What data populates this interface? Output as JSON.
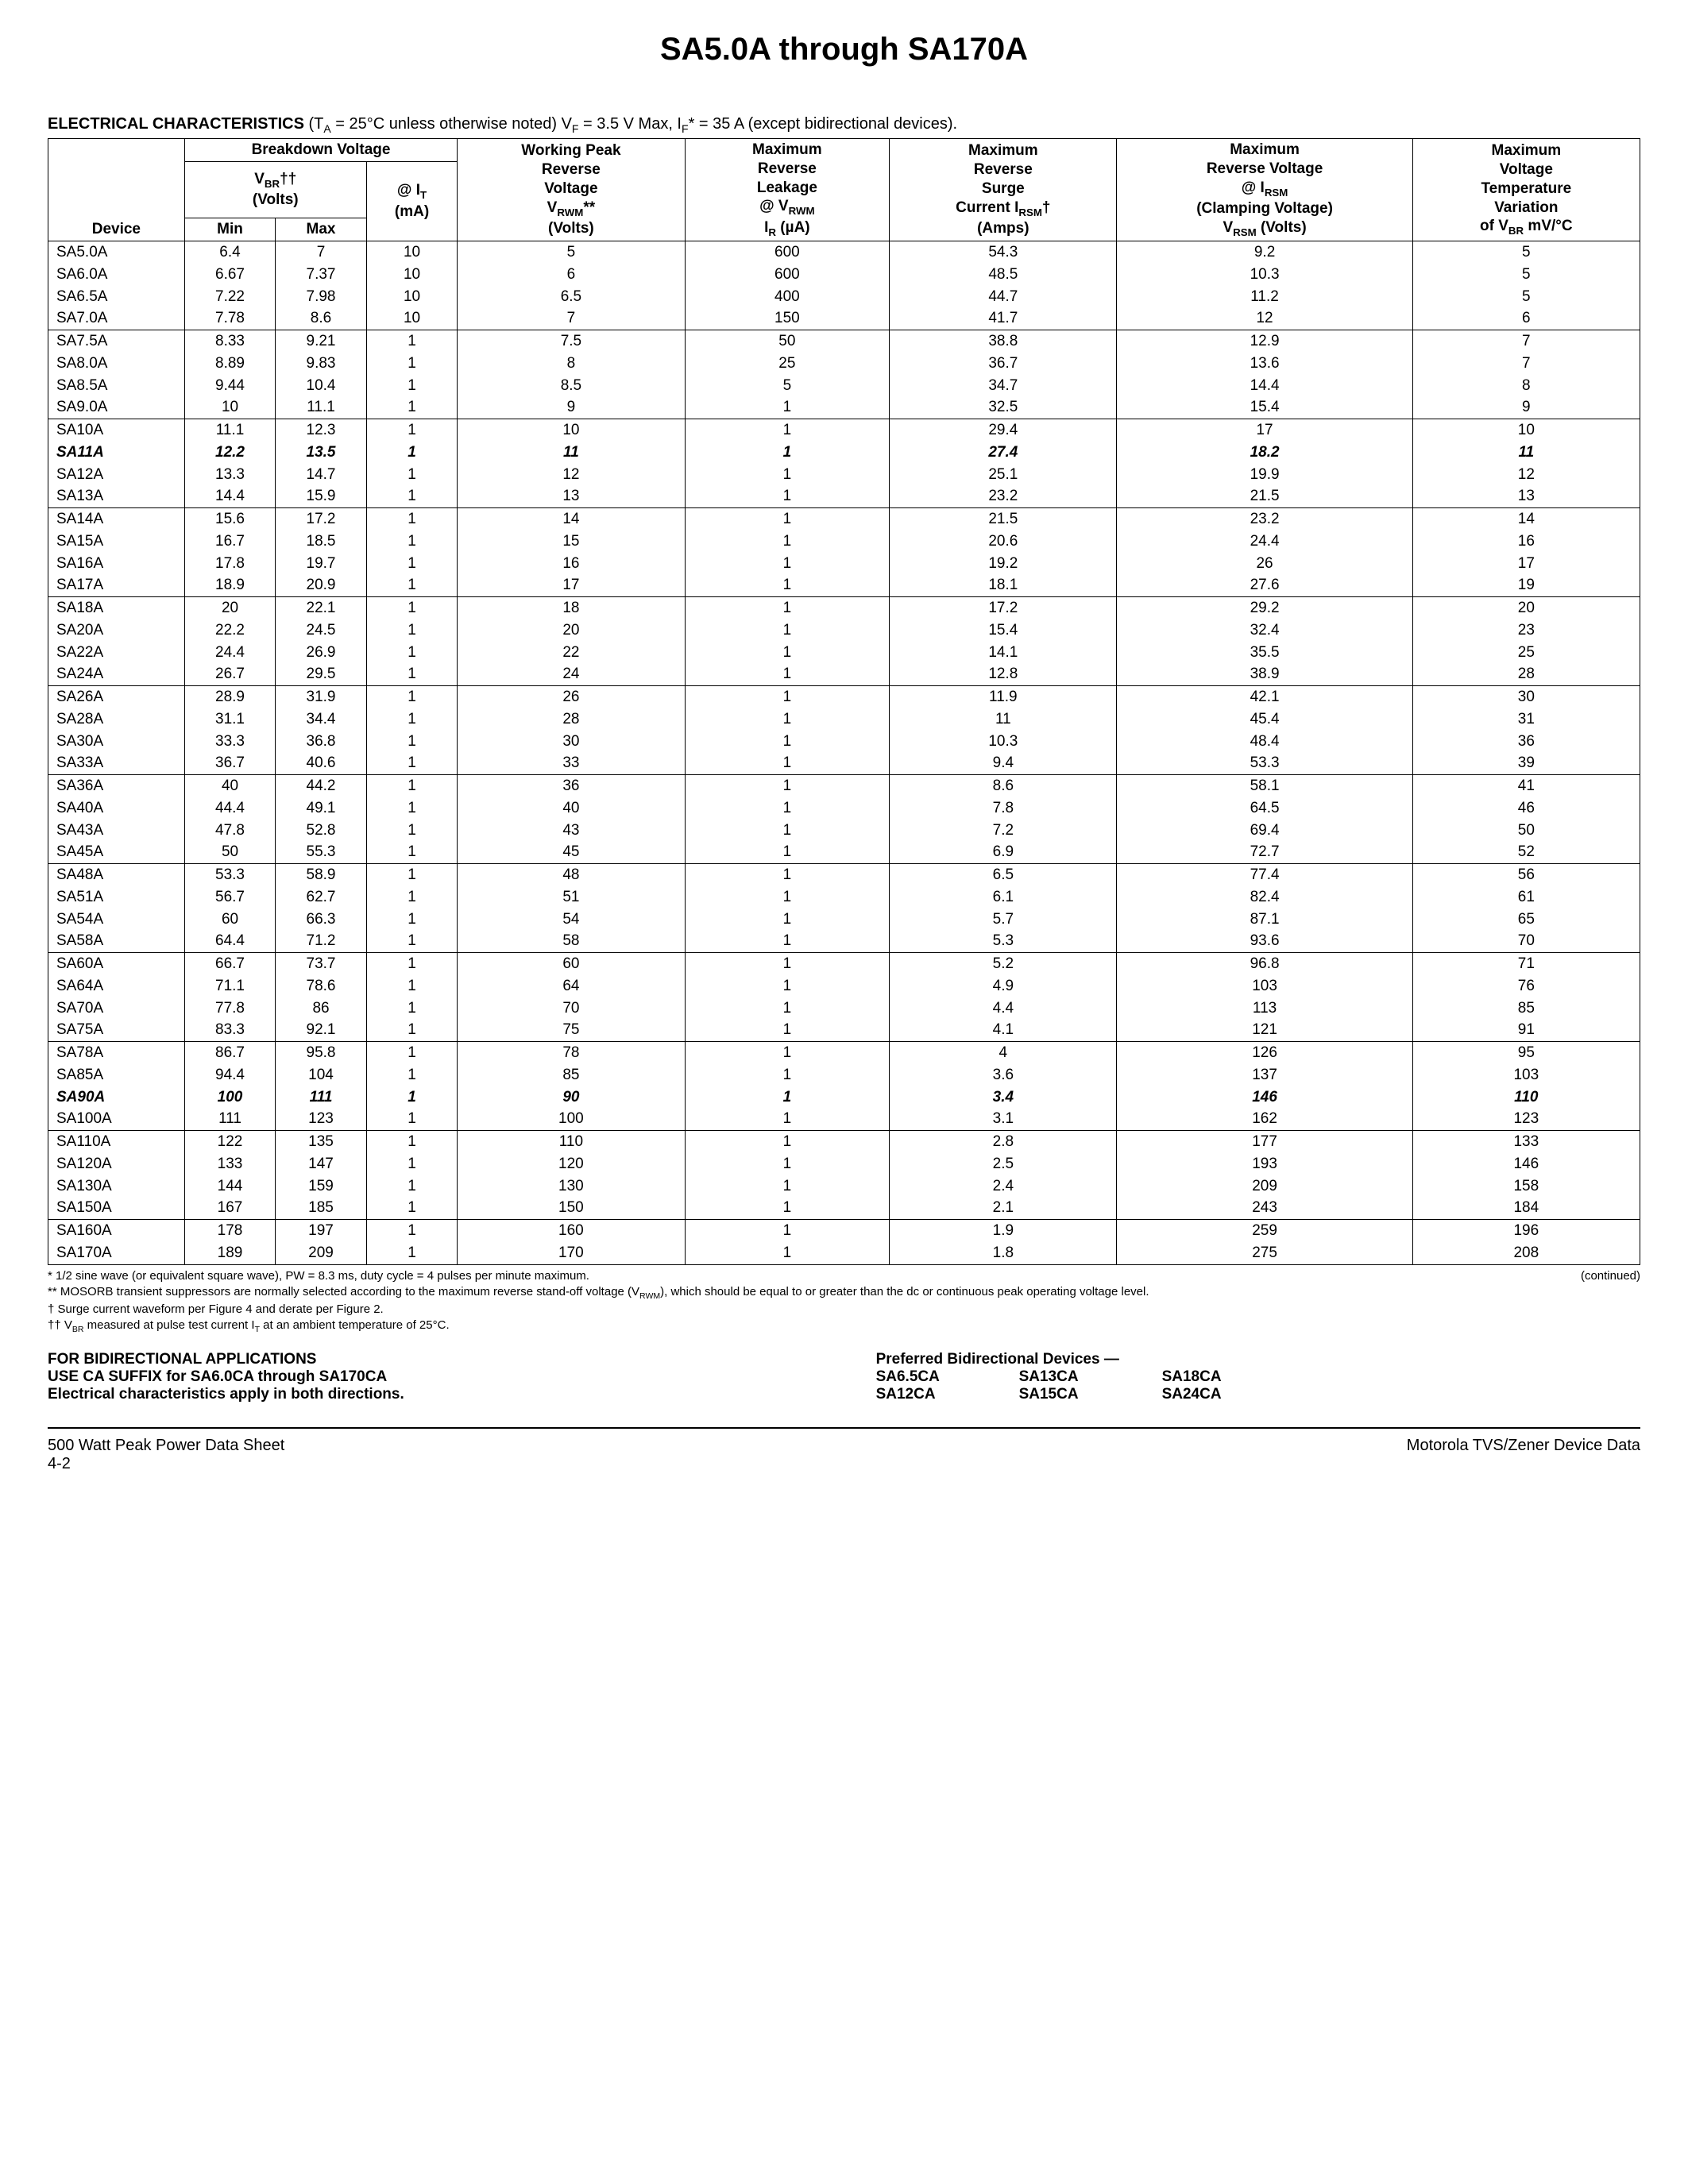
{
  "title": "SA5.0A through SA170A",
  "section_header": {
    "bold": "ELECTRICAL CHARACTERISTICS",
    "rest": " (T_A = 25°C unless otherwise noted) V_F = 3.5 V Max, I_F* = 35 A (except bidirectional devices)."
  },
  "columns": {
    "device": "Device",
    "breakdown": "Breakdown Voltage",
    "vbr": "V_BR††",
    "vbr_unit": "(Volts)",
    "min": "Min",
    "max": "Max",
    "it": "@ I_T",
    "it_unit": "(mA)",
    "vrwm_h1": "Working Peak",
    "vrwm_h2": "Reverse Voltage",
    "vrwm_h3": "V_RWM**",
    "vrwm_unit": "(Volts)",
    "ir_h1": "Maximum",
    "ir_h2": "Reverse Leakage",
    "ir_h3": "@ V_RWM",
    "ir_unit": "I_R (µA)",
    "irsm_h1": "Maximum",
    "irsm_h2": "Reverse Surge",
    "irsm_h3": "Current I_RSM†",
    "irsm_unit": "(Amps)",
    "vrsm_h1": "Maximum",
    "vrsm_h2": "Reverse Voltage",
    "vrsm_h3": "@ I_RSM",
    "vrsm_h4": "(Clamping Voltage)",
    "vrsm_unit": "V_RSM (Volts)",
    "temp_h1": "Maximum",
    "temp_h2": "Voltage",
    "temp_h3": "Temperature",
    "temp_h4": "Variation",
    "temp_unit": "of V_BR mV/°C"
  },
  "groups": [
    [
      {
        "device": "SA5.0A",
        "min": "6.4",
        "max": "7",
        "it": "10",
        "vrwm": "5",
        "ir": "600",
        "irsm": "54.3",
        "vrsm": "9.2",
        "temp": "5"
      },
      {
        "device": "SA6.0A",
        "min": "6.67",
        "max": "7.37",
        "it": "10",
        "vrwm": "6",
        "ir": "600",
        "irsm": "48.5",
        "vrsm": "10.3",
        "temp": "5"
      },
      {
        "device": "SA6.5A",
        "min": "7.22",
        "max": "7.98",
        "it": "10",
        "vrwm": "6.5",
        "ir": "400",
        "irsm": "44.7",
        "vrsm": "11.2",
        "temp": "5"
      },
      {
        "device": "SA7.0A",
        "min": "7.78",
        "max": "8.6",
        "it": "10",
        "vrwm": "7",
        "ir": "150",
        "irsm": "41.7",
        "vrsm": "12",
        "temp": "6"
      }
    ],
    [
      {
        "device": "SA7.5A",
        "min": "8.33",
        "max": "9.21",
        "it": "1",
        "vrwm": "7.5",
        "ir": "50",
        "irsm": "38.8",
        "vrsm": "12.9",
        "temp": "7"
      },
      {
        "device": "SA8.0A",
        "min": "8.89",
        "max": "9.83",
        "it": "1",
        "vrwm": "8",
        "ir": "25",
        "irsm": "36.7",
        "vrsm": "13.6",
        "temp": "7"
      },
      {
        "device": "SA8.5A",
        "min": "9.44",
        "max": "10.4",
        "it": "1",
        "vrwm": "8.5",
        "ir": "5",
        "irsm": "34.7",
        "vrsm": "14.4",
        "temp": "8"
      },
      {
        "device": "SA9.0A",
        "min": "10",
        "max": "11.1",
        "it": "1",
        "vrwm": "9",
        "ir": "1",
        "irsm": "32.5",
        "vrsm": "15.4",
        "temp": "9"
      }
    ],
    [
      {
        "device": "SA10A",
        "min": "11.1",
        "max": "12.3",
        "it": "1",
        "vrwm": "10",
        "ir": "1",
        "irsm": "29.4",
        "vrsm": "17",
        "temp": "10"
      },
      {
        "device": "SA11A",
        "min": "12.2",
        "max": "13.5",
        "it": "1",
        "vrwm": "11",
        "ir": "1",
        "irsm": "27.4",
        "vrsm": "18.2",
        "temp": "11",
        "italic": true
      },
      {
        "device": "SA12A",
        "min": "13.3",
        "max": "14.7",
        "it": "1",
        "vrwm": "12",
        "ir": "1",
        "irsm": "25.1",
        "vrsm": "19.9",
        "temp": "12"
      },
      {
        "device": "SA13A",
        "min": "14.4",
        "max": "15.9",
        "it": "1",
        "vrwm": "13",
        "ir": "1",
        "irsm": "23.2",
        "vrsm": "21.5",
        "temp": "13"
      }
    ],
    [
      {
        "device": "SA14A",
        "min": "15.6",
        "max": "17.2",
        "it": "1",
        "vrwm": "14",
        "ir": "1",
        "irsm": "21.5",
        "vrsm": "23.2",
        "temp": "14"
      },
      {
        "device": "SA15A",
        "min": "16.7",
        "max": "18.5",
        "it": "1",
        "vrwm": "15",
        "ir": "1",
        "irsm": "20.6",
        "vrsm": "24.4",
        "temp": "16"
      },
      {
        "device": "SA16A",
        "min": "17.8",
        "max": "19.7",
        "it": "1",
        "vrwm": "16",
        "ir": "1",
        "irsm": "19.2",
        "vrsm": "26",
        "temp": "17"
      },
      {
        "device": "SA17A",
        "min": "18.9",
        "max": "20.9",
        "it": "1",
        "vrwm": "17",
        "ir": "1",
        "irsm": "18.1",
        "vrsm": "27.6",
        "temp": "19"
      }
    ],
    [
      {
        "device": "SA18A",
        "min": "20",
        "max": "22.1",
        "it": "1",
        "vrwm": "18",
        "ir": "1",
        "irsm": "17.2",
        "vrsm": "29.2",
        "temp": "20"
      },
      {
        "device": "SA20A",
        "min": "22.2",
        "max": "24.5",
        "it": "1",
        "vrwm": "20",
        "ir": "1",
        "irsm": "15.4",
        "vrsm": "32.4",
        "temp": "23"
      },
      {
        "device": "SA22A",
        "min": "24.4",
        "max": "26.9",
        "it": "1",
        "vrwm": "22",
        "ir": "1",
        "irsm": "14.1",
        "vrsm": "35.5",
        "temp": "25"
      },
      {
        "device": "SA24A",
        "min": "26.7",
        "max": "29.5",
        "it": "1",
        "vrwm": "24",
        "ir": "1",
        "irsm": "12.8",
        "vrsm": "38.9",
        "temp": "28"
      }
    ],
    [
      {
        "device": "SA26A",
        "min": "28.9",
        "max": "31.9",
        "it": "1",
        "vrwm": "26",
        "ir": "1",
        "irsm": "11.9",
        "vrsm": "42.1",
        "temp": "30"
      },
      {
        "device": "SA28A",
        "min": "31.1",
        "max": "34.4",
        "it": "1",
        "vrwm": "28",
        "ir": "1",
        "irsm": "11",
        "vrsm": "45.4",
        "temp": "31"
      },
      {
        "device": "SA30A",
        "min": "33.3",
        "max": "36.8",
        "it": "1",
        "vrwm": "30",
        "ir": "1",
        "irsm": "10.3",
        "vrsm": "48.4",
        "temp": "36"
      },
      {
        "device": "SA33A",
        "min": "36.7",
        "max": "40.6",
        "it": "1",
        "vrwm": "33",
        "ir": "1",
        "irsm": "9.4",
        "vrsm": "53.3",
        "temp": "39"
      }
    ],
    [
      {
        "device": "SA36A",
        "min": "40",
        "max": "44.2",
        "it": "1",
        "vrwm": "36",
        "ir": "1",
        "irsm": "8.6",
        "vrsm": "58.1",
        "temp": "41"
      },
      {
        "device": "SA40A",
        "min": "44.4",
        "max": "49.1",
        "it": "1",
        "vrwm": "40",
        "ir": "1",
        "irsm": "7.8",
        "vrsm": "64.5",
        "temp": "46"
      },
      {
        "device": "SA43A",
        "min": "47.8",
        "max": "52.8",
        "it": "1",
        "vrwm": "43",
        "ir": "1",
        "irsm": "7.2",
        "vrsm": "69.4",
        "temp": "50"
      },
      {
        "device": "SA45A",
        "min": "50",
        "max": "55.3",
        "it": "1",
        "vrwm": "45",
        "ir": "1",
        "irsm": "6.9",
        "vrsm": "72.7",
        "temp": "52"
      }
    ],
    [
      {
        "device": "SA48A",
        "min": "53.3",
        "max": "58.9",
        "it": "1",
        "vrwm": "48",
        "ir": "1",
        "irsm": "6.5",
        "vrsm": "77.4",
        "temp": "56"
      },
      {
        "device": "SA51A",
        "min": "56.7",
        "max": "62.7",
        "it": "1",
        "vrwm": "51",
        "ir": "1",
        "irsm": "6.1",
        "vrsm": "82.4",
        "temp": "61"
      },
      {
        "device": "SA54A",
        "min": "60",
        "max": "66.3",
        "it": "1",
        "vrwm": "54",
        "ir": "1",
        "irsm": "5.7",
        "vrsm": "87.1",
        "temp": "65"
      },
      {
        "device": "SA58A",
        "min": "64.4",
        "max": "71.2",
        "it": "1",
        "vrwm": "58",
        "ir": "1",
        "irsm": "5.3",
        "vrsm": "93.6",
        "temp": "70"
      }
    ],
    [
      {
        "device": "SA60A",
        "min": "66.7",
        "max": "73.7",
        "it": "1",
        "vrwm": "60",
        "ir": "1",
        "irsm": "5.2",
        "vrsm": "96.8",
        "temp": "71"
      },
      {
        "device": "SA64A",
        "min": "71.1",
        "max": "78.6",
        "it": "1",
        "vrwm": "64",
        "ir": "1",
        "irsm": "4.9",
        "vrsm": "103",
        "temp": "76"
      },
      {
        "device": "SA70A",
        "min": "77.8",
        "max": "86",
        "it": "1",
        "vrwm": "70",
        "ir": "1",
        "irsm": "4.4",
        "vrsm": "113",
        "temp": "85"
      },
      {
        "device": "SA75A",
        "min": "83.3",
        "max": "92.1",
        "it": "1",
        "vrwm": "75",
        "ir": "1",
        "irsm": "4.1",
        "vrsm": "121",
        "temp": "91"
      }
    ],
    [
      {
        "device": "SA78A",
        "min": "86.7",
        "max": "95.8",
        "it": "1",
        "vrwm": "78",
        "ir": "1",
        "irsm": "4",
        "vrsm": "126",
        "temp": "95"
      },
      {
        "device": "SA85A",
        "min": "94.4",
        "max": "104",
        "it": "1",
        "vrwm": "85",
        "ir": "1",
        "irsm": "3.6",
        "vrsm": "137",
        "temp": "103"
      },
      {
        "device": "SA90A",
        "min": "100",
        "max": "111",
        "it": "1",
        "vrwm": "90",
        "ir": "1",
        "irsm": "3.4",
        "vrsm": "146",
        "temp": "110",
        "italic": true
      },
      {
        "device": "SA100A",
        "min": "111",
        "max": "123",
        "it": "1",
        "vrwm": "100",
        "ir": "1",
        "irsm": "3.1",
        "vrsm": "162",
        "temp": "123"
      }
    ],
    [
      {
        "device": "SA110A",
        "min": "122",
        "max": "135",
        "it": "1",
        "vrwm": "110",
        "ir": "1",
        "irsm": "2.8",
        "vrsm": "177",
        "temp": "133"
      },
      {
        "device": "SA120A",
        "min": "133",
        "max": "147",
        "it": "1",
        "vrwm": "120",
        "ir": "1",
        "irsm": "2.5",
        "vrsm": "193",
        "temp": "146"
      },
      {
        "device": "SA130A",
        "min": "144",
        "max": "159",
        "it": "1",
        "vrwm": "130",
        "ir": "1",
        "irsm": "2.4",
        "vrsm": "209",
        "temp": "158"
      },
      {
        "device": "SA150A",
        "min": "167",
        "max": "185",
        "it": "1",
        "vrwm": "150",
        "ir": "1",
        "irsm": "2.1",
        "vrsm": "243",
        "temp": "184"
      }
    ],
    [
      {
        "device": "SA160A",
        "min": "178",
        "max": "197",
        "it": "1",
        "vrwm": "160",
        "ir": "1",
        "irsm": "1.9",
        "vrsm": "259",
        "temp": "196"
      },
      {
        "device": "SA170A",
        "min": "189",
        "max": "209",
        "it": "1",
        "vrwm": "170",
        "ir": "1",
        "irsm": "1.8",
        "vrsm": "275",
        "temp": "208"
      }
    ]
  ],
  "footnotes": {
    "continued": "(continued)",
    "n1": "* 1/2 sine wave (or equivalent square wave), PW = 8.3 ms, duty cycle = 4 pulses per minute maximum.",
    "n2": "** MOSORB transient suppressors are normally selected according to the maximum reverse stand-off voltage (V_RWM), which should be equal to or greater than the dc or continuous peak operating voltage level.",
    "n3": "† Surge current waveform per Figure 4 and derate per Figure 2.",
    "n4": "†† V_BR measured at pulse test current I_T at an ambient temperature of 25°C."
  },
  "bidir": {
    "l1": "FOR BIDIRECTIONAL APPLICATIONS",
    "l2": "USE CA SUFFIX for SA6.0CA through SA170CA",
    "l3": "Electrical characteristics apply in both directions.",
    "hdr": "Preferred Bidirectional Devices —",
    "devices": [
      "SA6.5CA",
      "SA13CA",
      "SA18CA",
      "SA12CA",
      "SA15CA",
      "SA24CA"
    ]
  },
  "footer": {
    "left1": "500 Watt Peak Power Data Sheet",
    "left2": "4-2",
    "right": "Motorola TVS/Zener Device Data"
  }
}
